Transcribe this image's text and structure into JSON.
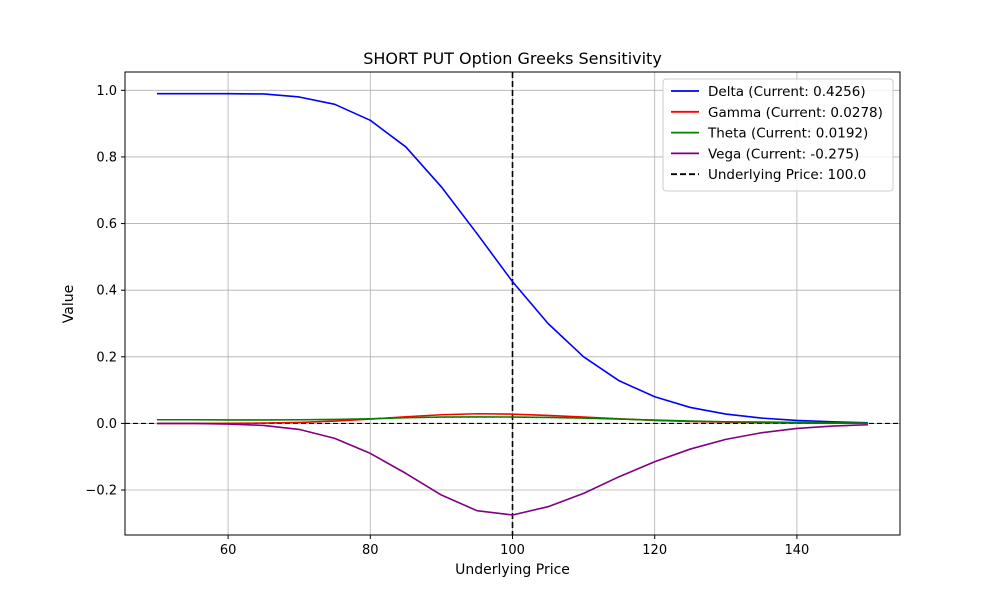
{
  "chart_data": {
    "type": "line",
    "title": "SHORT PUT Option Greeks Sensitivity",
    "xlabel": "Underlying Price",
    "ylabel": "Value",
    "xlim": [
      45.5,
      154.5
    ],
    "ylim": [
      -0.335,
      1.055
    ],
    "xticks": [
      60,
      80,
      100,
      120,
      140
    ],
    "xtick_labels": [
      "60",
      "80",
      "100",
      "120",
      "140"
    ],
    "yticks": [
      -0.2,
      0.0,
      0.2,
      0.4,
      0.6,
      0.8,
      1.0
    ],
    "ytick_labels": [
      "−0.2",
      "0.0",
      "0.2",
      "0.4",
      "0.6",
      "0.8",
      "1.0"
    ],
    "grid": true,
    "legend_position": "top-right",
    "x": [
      50,
      55,
      60,
      65,
      70,
      75,
      80,
      85,
      90,
      95,
      100,
      105,
      110,
      115,
      120,
      125,
      130,
      135,
      140,
      145,
      150
    ],
    "series": [
      {
        "name": "Delta (Current: 0.4256)",
        "color": "#0000ff",
        "style": "solid",
        "values": [
          0.99,
          0.99,
          0.99,
          0.989,
          0.98,
          0.958,
          0.91,
          0.83,
          0.71,
          0.57,
          0.4256,
          0.3,
          0.2,
          0.128,
          0.08,
          0.048,
          0.028,
          0.016,
          0.009,
          0.005,
          0.002
        ]
      },
      {
        "name": "Gamma (Current: 0.0278)",
        "color": "#ff0000",
        "style": "solid",
        "values": [
          0.0,
          0.0,
          0.0005,
          0.001,
          0.003,
          0.007,
          0.013,
          0.02,
          0.026,
          0.029,
          0.0278,
          0.024,
          0.019,
          0.014,
          0.009,
          0.006,
          0.004,
          0.002,
          0.001,
          0.0005,
          0.0002
        ]
      },
      {
        "name": "Theta (Current: 0.0192)",
        "color": "#008000",
        "style": "solid",
        "values": [
          0.011,
          0.011,
          0.0105,
          0.0105,
          0.011,
          0.012,
          0.014,
          0.017,
          0.019,
          0.0195,
          0.0192,
          0.018,
          0.016,
          0.013,
          0.01,
          0.007,
          0.005,
          0.004,
          0.003,
          0.002,
          0.001
        ]
      },
      {
        "name": "Vega (Current: -0.275)",
        "color": "#800080",
        "style": "solid",
        "values": [
          0.0,
          0.0,
          -0.002,
          -0.006,
          -0.018,
          -0.045,
          -0.09,
          -0.15,
          -0.215,
          -0.262,
          -0.275,
          -0.25,
          -0.21,
          -0.16,
          -0.115,
          -0.077,
          -0.048,
          -0.028,
          -0.015,
          -0.008,
          -0.004
        ]
      }
    ],
    "vline": {
      "x": 100.0,
      "color": "#000000",
      "style": "dashed",
      "label": "Underlying Price: 100.0"
    },
    "hline": {
      "y": 0.0,
      "color": "#000000",
      "style": "dashed"
    }
  }
}
